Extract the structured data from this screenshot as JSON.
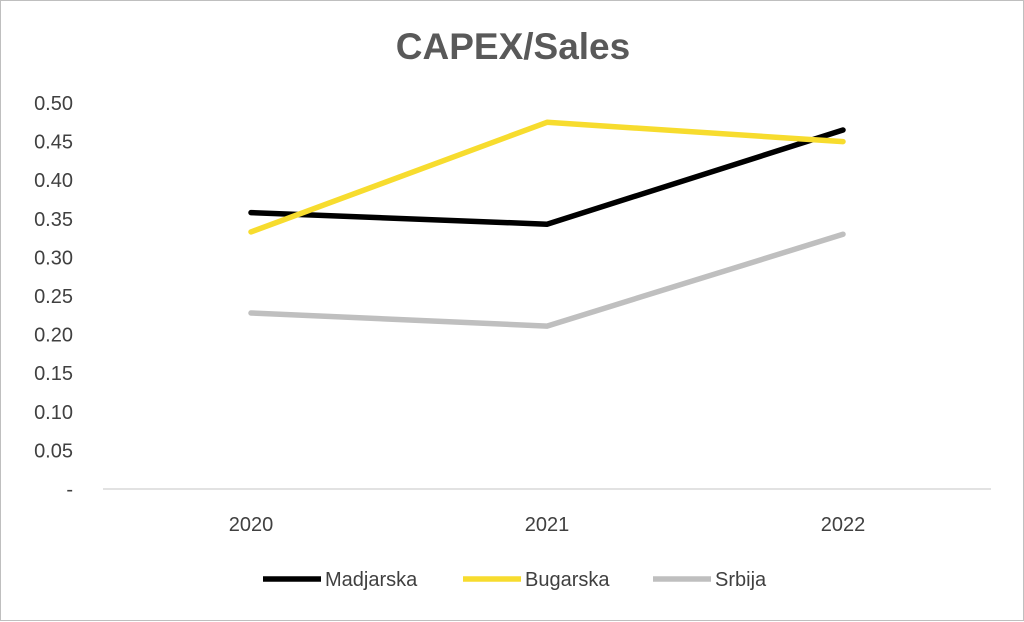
{
  "chart_data": {
    "type": "line",
    "title": "CAPEX/Sales",
    "xlabel": "",
    "ylabel": "",
    "categories": [
      "2020",
      "2021",
      "2022"
    ],
    "ylim": [
      0,
      0.5
    ],
    "yticks": [
      0,
      0.05,
      0.1,
      0.15,
      0.2,
      0.25,
      0.3,
      0.35,
      0.4,
      0.45,
      0.5
    ],
    "ytick_labels": [
      "-",
      "0.05",
      "0.10",
      "0.15",
      "0.20",
      "0.25",
      "0.30",
      "0.35",
      "0.40",
      "0.45",
      "0.50"
    ],
    "grid": false,
    "legend_position": "bottom",
    "series": [
      {
        "name": "Madjarska",
        "color": "#000000",
        "values": [
          0.358,
          0.343,
          0.465
        ]
      },
      {
        "name": "Bugarska",
        "color": "#f7dc2e",
        "values": [
          0.333,
          0.475,
          0.45
        ]
      },
      {
        "name": "Srbija",
        "color": "#bfbfbf",
        "values": [
          0.228,
          0.211,
          0.33
        ]
      }
    ]
  }
}
